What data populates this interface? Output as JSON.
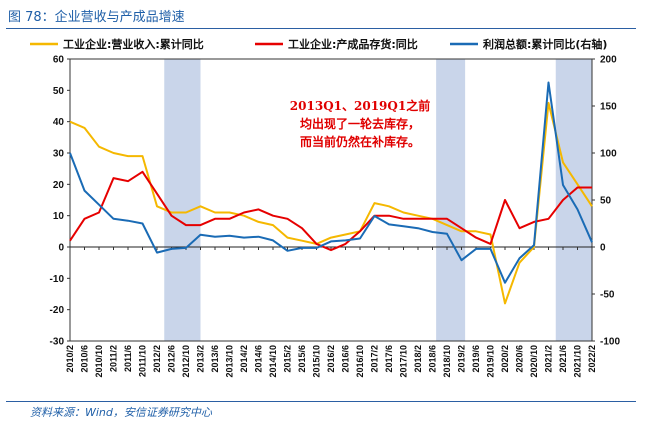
{
  "figure": {
    "title": "图 78：企业营收与产成品增速",
    "source": "资料来源：Wind，安信证券研究中心"
  },
  "chart_data": {
    "type": "line",
    "title": "图 78：企业营收与产成品增速",
    "categories": [
      "2010/2",
      "2010/6",
      "2010/10",
      "2011/2",
      "2011/6",
      "2011/10",
      "2012/2",
      "2012/6",
      "2012/10",
      "2013/2",
      "2013/6",
      "2013/10",
      "2014/2",
      "2014/6",
      "2014/10",
      "2015/2",
      "2015/6",
      "2015/10",
      "2016/2",
      "2016/6",
      "2016/10",
      "2017/2",
      "2017/6",
      "2017/10",
      "2018/2",
      "2018/6",
      "2018/10",
      "2019/2",
      "2019/6",
      "2019/10",
      "2020/2",
      "2020/6",
      "2020/10",
      "2021/2",
      "2021/6",
      "2021/10",
      "2022/2"
    ],
    "series": [
      {
        "name": "工业企业:营业收入:累计同比",
        "axis": "left",
        "color": "#f5b800",
        "values": [
          40,
          38,
          32,
          30,
          29,
          29,
          13,
          11,
          11,
          13,
          11,
          11,
          10,
          8,
          7,
          3,
          2,
          1,
          3,
          4,
          5,
          14,
          13,
          11,
          10,
          9,
          7,
          5,
          5,
          4,
          -18,
          -5,
          0,
          46,
          27,
          20,
          13
        ]
      },
      {
        "name": "工业企业:产成品存货:同比",
        "axis": "left",
        "color": "#e60000",
        "values": [
          2,
          9,
          11,
          22,
          21,
          24,
          17,
          10,
          7,
          7,
          9,
          9,
          11,
          12,
          10,
          9,
          6,
          1,
          -1,
          1,
          5,
          10,
          10,
          9,
          9,
          9,
          9,
          6,
          3,
          1,
          15,
          6,
          8,
          9,
          15,
          19,
          19
        ]
      },
      {
        "name": "利润总额:累计同比(右轴)",
        "axis": "right",
        "color": "#1a6bb5",
        "values": [
          100,
          60,
          45,
          30,
          28,
          25,
          -6,
          -2,
          -1,
          13,
          11,
          12,
          10,
          11,
          7,
          -4,
          -1,
          -1,
          6,
          7,
          9,
          33,
          24,
          22,
          20,
          16,
          14,
          -14,
          -2,
          -2,
          -38,
          -12,
          2,
          175,
          66,
          40,
          5
        ]
      }
    ],
    "left_axis": {
      "ylim": [
        -30,
        60
      ],
      "ticks": [
        60,
        50,
        40,
        30,
        20,
        10,
        0,
        -10,
        -20,
        -30
      ]
    },
    "right_axis": {
      "ylim": [
        -100,
        200
      ],
      "ticks": [
        200,
        150,
        100,
        50,
        0,
        -50,
        -100
      ]
    },
    "shaded_periods": [
      [
        "2012/4",
        "2013/2"
      ],
      [
        "2018/7",
        "2019/3"
      ],
      [
        "2021/4",
        "2022/2"
      ]
    ],
    "annotation": [
      "2013Q1、2019Q1之前",
      "均出现了一轮去库存，",
      "而当前仍然在补库存。"
    ],
    "legend_position": "top"
  }
}
